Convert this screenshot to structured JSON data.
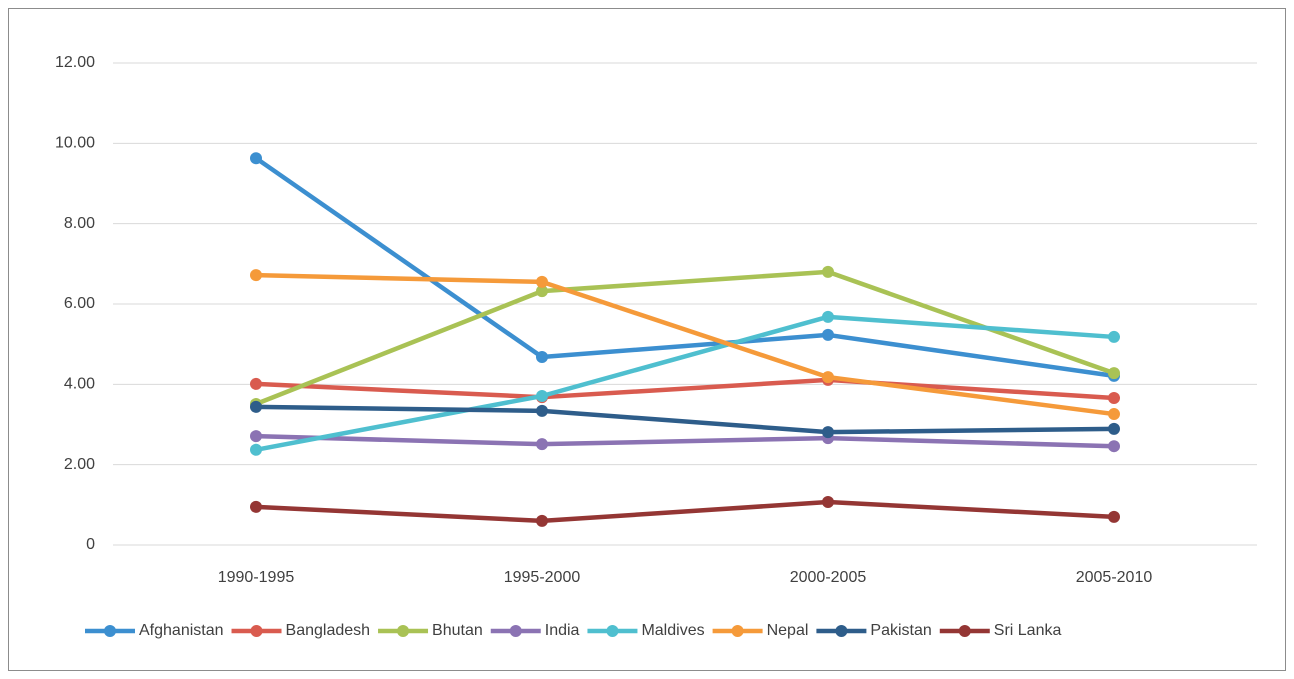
{
  "chart_data": {
    "type": "line",
    "categories": [
      "1990-1995",
      "1995-2000",
      "2000-2005",
      "2005-2010"
    ],
    "series": [
      {
        "name": "Afghanistan",
        "color": "#3c8fd0",
        "values": [
          9.63,
          4.68,
          5.23,
          4.21
        ]
      },
      {
        "name": "Bangladesh",
        "color": "#d95b4f",
        "values": [
          4.01,
          3.68,
          4.11,
          3.66
        ]
      },
      {
        "name": "Bhutan",
        "color": "#a9c255",
        "values": [
          3.51,
          6.32,
          6.8,
          4.28
        ]
      },
      {
        "name": "India",
        "color": "#8b73b3",
        "values": [
          2.71,
          2.51,
          2.66,
          2.46
        ]
      },
      {
        "name": "Maldives",
        "color": "#4fbfcf",
        "values": [
          2.37,
          3.71,
          5.68,
          5.18
        ]
      },
      {
        "name": "Nepal",
        "color": "#f59a3a",
        "values": [
          6.72,
          6.55,
          4.18,
          3.26
        ]
      },
      {
        "name": "Pakistan",
        "color": "#2e5d8a",
        "values": [
          3.44,
          3.34,
          2.81,
          2.89
        ]
      },
      {
        "name": "Sri Lanka",
        "color": "#943634",
        "values": [
          0.95,
          0.6,
          1.07,
          0.7
        ]
      }
    ],
    "ylim": [
      0,
      12
    ],
    "yticks": [
      0,
      {
        "value": 2,
        "label": "2.00"
      },
      {
        "value": 4,
        "label": "4.00"
      },
      {
        "value": 6,
        "label": "6.00"
      },
      {
        "value": 8,
        "label": "8.00"
      },
      {
        "value": 10,
        "label": "10.00"
      },
      {
        "value": 12,
        "label": "12.00"
      }
    ],
    "grid": true,
    "legend": "bottom"
  }
}
